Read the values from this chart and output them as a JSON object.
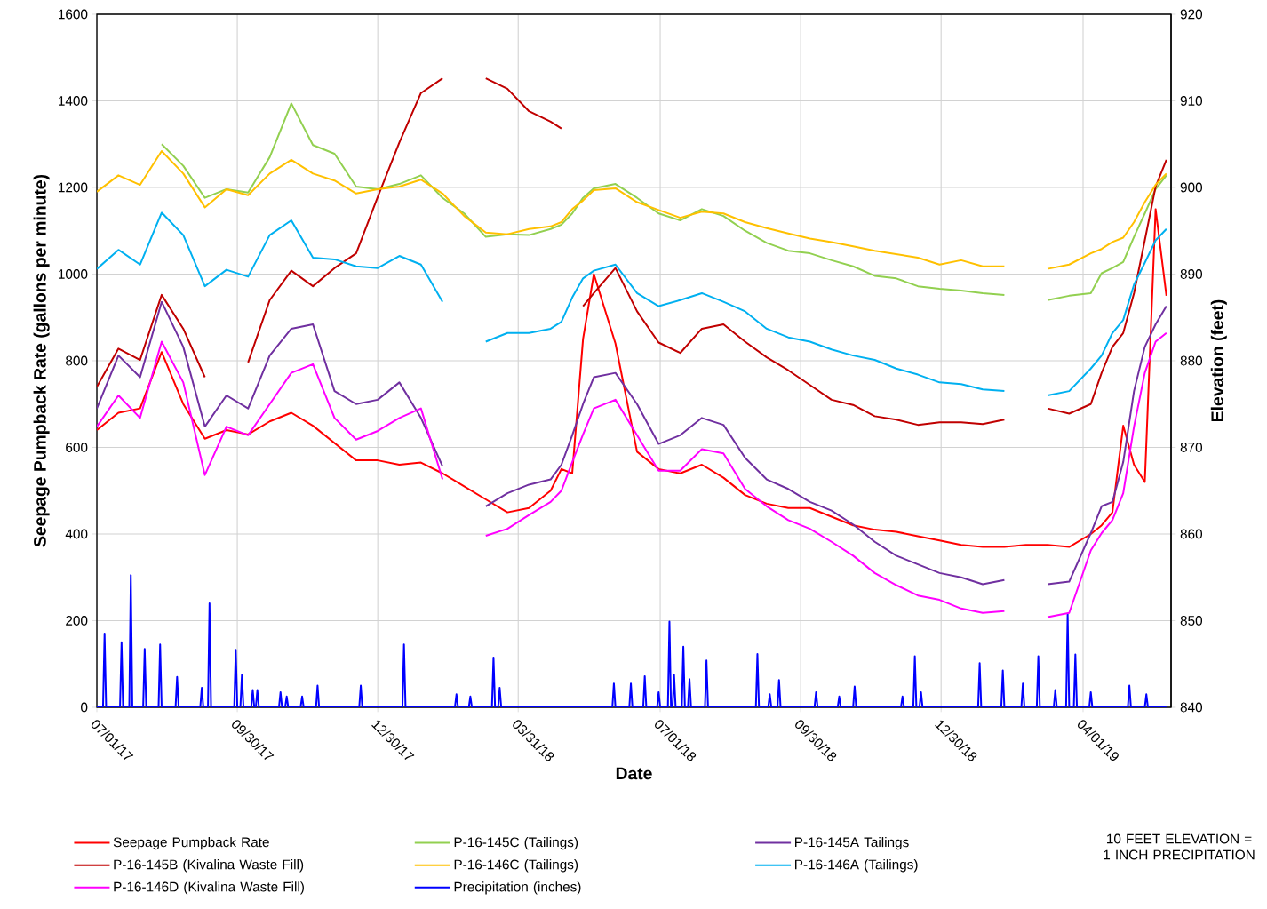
{
  "chart_data": {
    "type": "line",
    "xlabel": "Date",
    "ylabel": "Seepage Pumpback Rate (gallons per minute)",
    "y2label": "Elevation (feet)",
    "annotations": [
      "10 FEET ELEVATION = 1 INCH PRECIPITATION"
    ],
    "x": [
      "2017-07-01",
      "2017-07-15",
      "2017-07-29",
      "2017-08-12",
      "2017-08-26",
      "2017-09-09",
      "2017-09-23",
      "2017-10-07",
      "2017-10-21",
      "2017-11-04",
      "2017-11-18",
      "2017-12-02",
      "2017-12-16",
      "2017-12-30",
      "2018-01-13",
      "2018-01-27",
      "2018-02-10",
      "2018-02-24",
      "2018-03-10",
      "2018-03-24",
      "2018-04-07",
      "2018-04-21",
      "2018-04-28",
      "2018-05-05",
      "2018-05-12",
      "2018-05-19",
      "2018-06-02",
      "2018-06-16",
      "2018-06-30",
      "2018-07-14",
      "2018-07-28",
      "2018-08-11",
      "2018-08-25",
      "2018-09-08",
      "2018-09-22",
      "2018-10-06",
      "2018-10-20",
      "2018-11-03",
      "2018-11-17",
      "2018-12-01",
      "2018-12-15",
      "2018-12-29",
      "2019-01-12",
      "2019-01-26",
      "2019-02-09",
      "2019-02-23",
      "2019-03-09",
      "2019-03-23",
      "2019-04-06",
      "2019-04-13",
      "2019-04-20",
      "2019-04-27",
      "2019-05-04",
      "2019-05-11",
      "2019-05-18",
      "2019-05-25"
    ],
    "xlim": [
      "2017-07-01",
      "2019-05-28"
    ],
    "xticks": [
      {
        "value": "2017-07-01",
        "label": "07/01/17"
      },
      {
        "value": "2017-09-30",
        "label": "09/30/17"
      },
      {
        "value": "2017-12-30",
        "label": "12/30/17"
      },
      {
        "value": "2018-03-31",
        "label": "03/31/18"
      },
      {
        "value": "2018-07-01",
        "label": "07/01/18"
      },
      {
        "value": "2018-09-30",
        "label": "09/30/18"
      },
      {
        "value": "2018-12-30",
        "label": "12/30/18"
      },
      {
        "value": "2019-04-01",
        "label": "04/01/19"
      }
    ],
    "ylim": [
      0,
      1600
    ],
    "yticks": [
      0,
      200,
      400,
      600,
      800,
      1000,
      1200,
      1400,
      1600
    ],
    "y2lim": [
      840,
      920
    ],
    "y2ticks": [
      840,
      850,
      860,
      870,
      880,
      890,
      900,
      910,
      920
    ],
    "grid": true,
    "legend": "bottom",
    "series": [
      {
        "name": "Seepage Pumpback Rate",
        "color": "#ff0000",
        "values": [
          640,
          680,
          690,
          820,
          700,
          620,
          640,
          630,
          660,
          680,
          650,
          610,
          570,
          570,
          560,
          565,
          540,
          510,
          480,
          450,
          460,
          500,
          550,
          540,
          850,
          1000,
          840,
          590,
          550,
          540,
          560,
          530,
          490,
          470,
          460,
          460,
          440,
          420,
          410,
          405,
          395,
          385,
          375,
          370,
          370,
          375,
          375,
          370,
          400,
          420,
          450,
          650,
          560,
          520,
          1150,
          950
        ]
      },
      {
        "name": "P-16-145C (Tailings)",
        "color": "#92d050",
        "axis": "y2",
        "values": [
          null,
          null,
          null,
          905.0,
          902.5,
          898.8,
          899.8,
          899.4,
          903.5,
          909.7,
          904.9,
          903.9,
          900.1,
          899.8,
          900.4,
          901.4,
          898.8,
          897.0,
          894.3,
          894.6,
          894.5,
          895.2,
          895.7,
          897.0,
          898.8,
          899.9,
          900.4,
          898.8,
          897.0,
          896.2,
          897.5,
          896.7,
          895.0,
          893.6,
          892.7,
          892.4,
          891.6,
          890.9,
          889.8,
          889.5,
          888.6,
          888.3,
          888.1,
          887.8,
          887.6,
          null,
          887.0,
          887.5,
          887.8,
          890.1,
          890.7,
          891.4,
          894.3,
          897.0,
          899.8,
          901.4
        ]
      },
      {
        "name": "P-16-145A Tailings",
        "color": "#7030a0",
        "axis": "y2",
        "values": [
          874.5,
          880.6,
          878.1,
          886.8,
          881.6,
          872.4,
          876.0,
          874.5,
          880.6,
          883.7,
          884.2,
          876.5,
          875.0,
          875.5,
          877.5,
          873.4,
          867.8,
          null,
          863.2,
          864.7,
          865.7,
          866.3,
          868.0,
          871.4,
          875.0,
          878.1,
          878.6,
          875.0,
          870.4,
          871.4,
          873.4,
          872.6,
          868.8,
          866.3,
          865.2,
          863.7,
          862.7,
          861.1,
          859.1,
          857.5,
          856.5,
          855.5,
          855.0,
          854.2,
          854.7,
          null,
          854.2,
          854.5,
          860.1,
          863.2,
          863.7,
          868.3,
          876.5,
          881.6,
          884.2,
          886.3
        ]
      },
      {
        "name": "P-16-145B (Kivalina Waste Fill)",
        "color": "#c00000",
        "axis": "y2",
        "values": [
          877.0,
          881.4,
          880.1,
          887.6,
          883.7,
          878.1,
          null,
          879.8,
          887.0,
          890.4,
          888.6,
          890.7,
          892.4,
          898.9,
          905.2,
          910.9,
          912.6,
          null,
          912.6,
          911.4,
          908.8,
          907.6,
          906.8,
          null,
          886.3,
          887.8,
          890.7,
          885.7,
          882.1,
          880.9,
          883.7,
          884.2,
          882.2,
          880.4,
          878.9,
          877.2,
          875.5,
          874.9,
          873.6,
          873.2,
          872.6,
          872.9,
          872.9,
          872.7,
          873.2,
          null,
          874.5,
          873.9,
          875.0,
          878.6,
          881.6,
          883.2,
          887.8,
          893.9,
          900.1,
          903.2
        ]
      },
      {
        "name": "P-16-146C (Tailings)",
        "color": "#ffc000",
        "axis": "y2",
        "values": [
          899.5,
          901.4,
          900.3,
          904.2,
          901.6,
          897.7,
          899.8,
          899.1,
          901.6,
          903.2,
          901.6,
          900.8,
          899.3,
          899.8,
          900.1,
          900.9,
          899.3,
          896.7,
          894.8,
          894.6,
          895.2,
          895.5,
          896.0,
          897.5,
          898.5,
          899.7,
          899.9,
          898.3,
          897.4,
          896.5,
          897.2,
          897.0,
          896.0,
          895.3,
          894.7,
          894.1,
          893.7,
          893.2,
          892.7,
          892.3,
          891.9,
          891.1,
          891.6,
          890.9,
          890.9,
          null,
          890.6,
          891.1,
          892.4,
          892.9,
          893.7,
          894.2,
          896.0,
          898.3,
          900.3,
          901.6
        ]
      },
      {
        "name": "P-16-146A (Tailings)",
        "color": "#00b0f0",
        "axis": "y2",
        "values": [
          890.6,
          892.8,
          891.1,
          897.1,
          894.5,
          888.6,
          890.5,
          889.7,
          894.5,
          896.2,
          891.9,
          891.7,
          890.9,
          890.7,
          892.1,
          891.1,
          886.8,
          null,
          882.2,
          883.2,
          883.2,
          883.7,
          884.5,
          887.3,
          889.5,
          890.4,
          891.1,
          887.8,
          886.3,
          887.0,
          887.8,
          886.8,
          885.7,
          883.7,
          882.7,
          882.2,
          881.3,
          880.6,
          880.1,
          879.1,
          878.4,
          877.5,
          877.3,
          876.7,
          876.5,
          null,
          876.0,
          876.5,
          879.1,
          880.6,
          883.2,
          884.7,
          888.8,
          891.3,
          893.9,
          895.2
        ]
      },
      {
        "name": "P-16-146D (Kivalina Waste Fill)",
        "color": "#ff00ff",
        "axis": "y2",
        "values": [
          872.4,
          876.0,
          873.4,
          882.2,
          877.5,
          866.8,
          872.4,
          871.4,
          875.0,
          878.6,
          879.6,
          873.4,
          870.9,
          871.9,
          873.4,
          874.5,
          866.3,
          null,
          859.8,
          860.6,
          862.2,
          863.7,
          865.0,
          868.3,
          871.5,
          874.5,
          875.5,
          871.4,
          867.3,
          867.3,
          869.8,
          869.3,
          865.2,
          863.2,
          861.6,
          860.6,
          859.1,
          857.5,
          855.5,
          854.1,
          852.9,
          852.4,
          851.4,
          850.9,
          851.1,
          null,
          850.4,
          850.9,
          858.1,
          860.1,
          861.6,
          864.7,
          872.4,
          878.6,
          882.2,
          883.2
        ]
      },
      {
        "name": "Precipitation (inches)",
        "color": "#0000ff",
        "x": [
          "2017-07-01",
          "2017-07-05",
          "2017-07-06",
          "2017-07-07",
          "2017-07-16",
          "2017-07-17",
          "2017-07-18",
          "2017-07-22",
          "2017-07-23",
          "2017-07-24",
          "2017-07-31",
          "2017-08-01",
          "2017-08-02",
          "2017-08-10",
          "2017-08-11",
          "2017-08-12",
          "2017-08-21",
          "2017-08-22",
          "2017-08-23",
          "2017-09-06",
          "2017-09-07",
          "2017-09-08",
          "2017-09-11",
          "2017-09-12",
          "2017-09-13",
          "2017-09-28",
          "2017-09-29",
          "2017-09-30",
          "2017-10-02",
          "2017-10-03",
          "2017-10-04",
          "2017-10-09",
          "2017-10-10",
          "2017-10-11",
          "2017-10-12",
          "2017-10-13",
          "2017-10-14",
          "2017-10-27",
          "2017-10-28",
          "2017-10-29",
          "2017-10-31",
          "2017-11-01",
          "2017-11-02",
          "2017-11-10",
          "2017-11-11",
          "2017-11-12",
          "2017-11-20",
          "2017-11-21",
          "2017-11-22",
          "2017-12-18",
          "2017-12-19",
          "2017-12-20",
          "2018-01-15",
          "2018-01-16",
          "2018-01-17",
          "2018-02-18",
          "2018-02-19",
          "2018-02-20",
          "2018-02-27",
          "2018-02-28",
          "2018-03-01",
          "2018-03-14",
          "2018-03-15",
          "2018-03-16",
          "2018-03-18",
          "2018-03-19",
          "2018-03-20",
          "2018-05-31",
          "2018-06-01",
          "2018-06-02",
          "2018-06-11",
          "2018-06-12",
          "2018-06-13",
          "2018-06-20",
          "2018-06-21",
          "2018-06-22",
          "2018-06-29",
          "2018-06-30",
          "2018-07-01",
          "2018-07-06",
          "2018-07-07",
          "2018-07-08",
          "2018-07-09",
          "2018-07-10",
          "2018-07-11",
          "2018-07-15",
          "2018-07-16",
          "2018-07-17",
          "2018-07-19",
          "2018-07-20",
          "2018-07-21",
          "2018-07-30",
          "2018-07-31",
          "2018-08-01",
          "2018-09-01",
          "2018-09-02",
          "2018-09-03",
          "2018-09-09",
          "2018-09-10",
          "2018-09-11",
          "2018-09-15",
          "2018-09-16",
          "2018-09-17",
          "2018-10-09",
          "2018-10-10",
          "2018-10-11",
          "2018-10-24",
          "2018-10-25",
          "2018-10-26",
          "2018-11-03",
          "2018-11-04",
          "2018-11-05",
          "2018-12-04",
          "2018-12-05",
          "2018-12-06",
          "2018-12-12",
          "2018-12-13",
          "2018-12-14",
          "2018-12-16",
          "2018-12-17",
          "2018-12-18",
          "2019-01-23",
          "2019-01-24",
          "2019-01-25",
          "2019-02-07",
          "2019-02-08",
          "2019-02-09",
          "2019-02-20",
          "2019-02-21",
          "2019-02-22",
          "2019-03-02",
          "2019-03-03",
          "2019-03-04",
          "2019-03-13",
          "2019-03-14",
          "2019-03-15",
          "2019-03-21",
          "2019-03-22",
          "2019-03-23",
          "2019-03-26",
          "2019-03-27",
          "2019-03-28",
          "2019-04-05",
          "2019-04-06",
          "2019-04-07",
          "2019-04-30",
          "2019-05-01",
          "2019-05-02",
          "2019-05-11",
          "2019-05-12",
          "2019-05-13",
          "2019-05-25"
        ],
        "values": [
          0,
          0,
          170,
          0,
          0,
          150,
          0,
          0,
          305,
          0,
          0,
          135,
          0,
          0,
          145,
          0,
          0,
          70,
          0,
          0,
          45,
          0,
          0,
          240,
          0,
          0,
          133,
          0,
          0,
          75,
          0,
          0,
          40,
          0,
          0,
          40,
          0,
          0,
          35,
          0,
          0,
          25,
          0,
          0,
          25,
          0,
          0,
          50,
          0,
          0,
          50,
          0,
          0,
          145,
          0,
          0,
          30,
          0,
          0,
          25,
          0,
          0,
          115,
          0,
          0,
          45,
          0,
          0,
          55,
          0,
          0,
          55,
          0,
          0,
          72,
          0,
          0,
          35,
          0,
          0,
          198,
          0,
          0,
          75,
          0,
          0,
          140,
          0,
          0,
          65,
          0,
          0,
          108,
          0,
          0,
          123,
          0,
          0,
          30,
          0,
          0,
          63,
          0,
          0,
          35,
          0,
          0,
          25,
          0,
          0,
          48,
          0,
          0,
          25,
          0,
          0,
          118,
          0,
          0,
          35,
          0,
          0,
          102,
          0,
          0,
          85,
          0,
          0,
          55,
          0,
          0,
          118,
          0,
          0,
          40,
          0,
          0,
          215,
          0,
          0,
          122,
          0,
          0,
          35,
          0,
          0,
          50,
          0,
          0,
          30,
          0,
          0
        ]
      }
    ]
  }
}
